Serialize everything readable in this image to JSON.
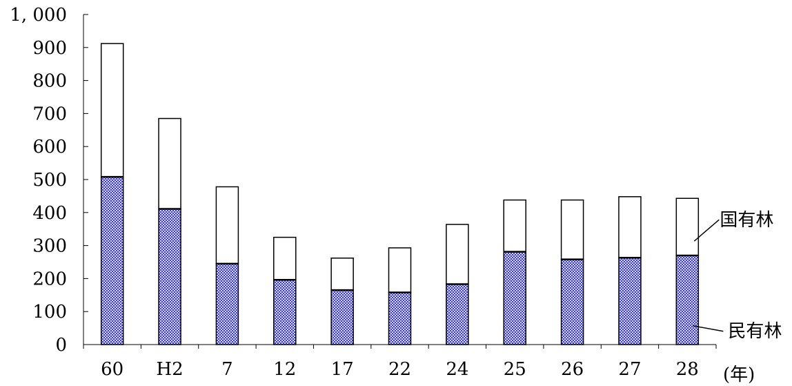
{
  "chart_data": {
    "type": "bar",
    "stacked": true,
    "categories": [
      "60",
      "H2",
      "7",
      "12",
      "17",
      "22",
      "24",
      "25",
      "26",
      "27",
      "28"
    ],
    "x_unit": "(年)",
    "y_tick_labels": [
      "0",
      "100",
      "200",
      "300",
      "400",
      "500",
      "600",
      "700",
      "800",
      "900",
      "1, 000"
    ],
    "ylim": [
      0,
      1000
    ],
    "grid": false,
    "series": [
      {
        "name": "民有林",
        "values": [
          508,
          411,
          245,
          196,
          165,
          158,
          183,
          281,
          258,
          263,
          270
        ],
        "fill": "#3a3ad8",
        "pattern": "checkered"
      },
      {
        "name": "国有林",
        "values": [
          404,
          274,
          233,
          129,
          97,
          135,
          181,
          157,
          180,
          185,
          173
        ],
        "fill": "#ffffff"
      }
    ],
    "legend_placement": "right, leader-line labels"
  }
}
